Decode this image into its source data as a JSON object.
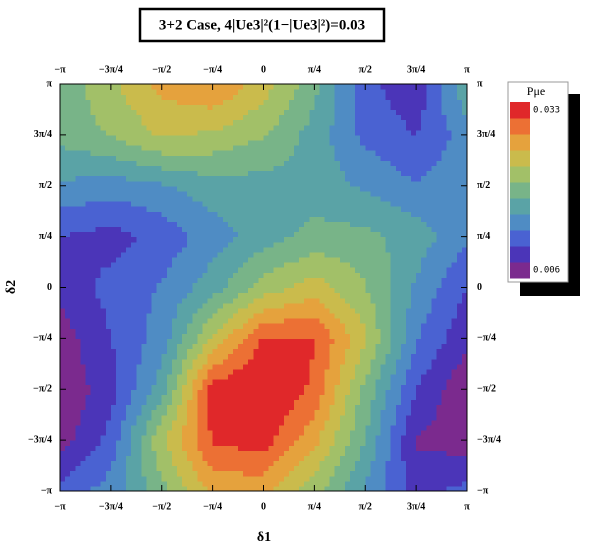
{
  "chart_data": {
    "type": "contour",
    "title": "3+2 Case, 4|Ue3|²(1−|Ue3|²)=0.03",
    "xlabel": "δ1",
    "ylabel": "δ2",
    "xlim": [
      -3.14159,
      3.14159
    ],
    "ylim": [
      -3.14159,
      3.14159
    ],
    "xticks": [
      {
        "value": -3.14159,
        "label": "−π"
      },
      {
        "value": -2.35619,
        "label": "−3π/4"
      },
      {
        "value": -1.5708,
        "label": "−π/2"
      },
      {
        "value": -0.7854,
        "label": "−π/4"
      },
      0,
      {
        "value": 0.7854,
        "label": "π/4"
      },
      {
        "value": 1.5708,
        "label": "π/2"
      },
      {
        "value": 2.35619,
        "label": "3π/4"
      },
      {
        "value": 3.14159,
        "label": "π"
      }
    ],
    "yticks": [
      {
        "value": -3.14159,
        "label": "−π"
      },
      {
        "value": -2.35619,
        "label": "−3π/4"
      },
      {
        "value": -1.5708,
        "label": "−π/2"
      },
      {
        "value": -0.7854,
        "label": "−π/4"
      },
      0,
      {
        "value": 0.7854,
        "label": "π/4"
      },
      {
        "value": 1.5708,
        "label": "π/2"
      },
      {
        "value": 2.35619,
        "label": "3π/4"
      },
      {
        "value": 3.14159,
        "label": "π"
      }
    ],
    "z": [
      [
        0.011,
        0.014,
        0.02,
        0.027,
        0.027,
        0.022,
        0.015,
        0.009,
        0.011
      ],
      [
        0.006,
        0.011,
        0.023,
        0.032,
        0.033,
        0.027,
        0.018,
        0.007,
        0.006
      ],
      [
        0.005,
        0.009,
        0.017,
        0.033,
        0.035,
        0.031,
        0.02,
        0.01,
        0.005
      ],
      [
        0.006,
        0.01,
        0.014,
        0.024,
        0.032,
        0.032,
        0.024,
        0.013,
        0.008
      ],
      [
        0.008,
        0.011,
        0.013,
        0.017,
        0.022,
        0.025,
        0.021,
        0.015,
        0.01
      ],
      [
        0.01,
        0.009,
        0.011,
        0.014,
        0.017,
        0.019,
        0.019,
        0.017,
        0.013
      ],
      [
        0.015,
        0.014,
        0.015,
        0.017,
        0.017,
        0.017,
        0.015,
        0.013,
        0.015
      ],
      [
        0.019,
        0.021,
        0.024,
        0.023,
        0.021,
        0.017,
        0.012,
        0.01,
        0.014
      ],
      [
        0.019,
        0.023,
        0.027,
        0.029,
        0.025,
        0.019,
        0.011,
        0.008,
        0.018
      ]
    ],
    "zlim": [
      0.006,
      0.033
    ],
    "colors": [
      "#7b2a8e",
      "#4b35b8",
      "#4a62d2",
      "#4f8cc4",
      "#5aa3a6",
      "#78b488",
      "#a2c068",
      "#cabb4c",
      "#e5a23d",
      "#ec7034",
      "#e0282a"
    ],
    "legend": {
      "title": "Pμe",
      "zticks": [
        0.033,
        0.006
      ]
    }
  }
}
